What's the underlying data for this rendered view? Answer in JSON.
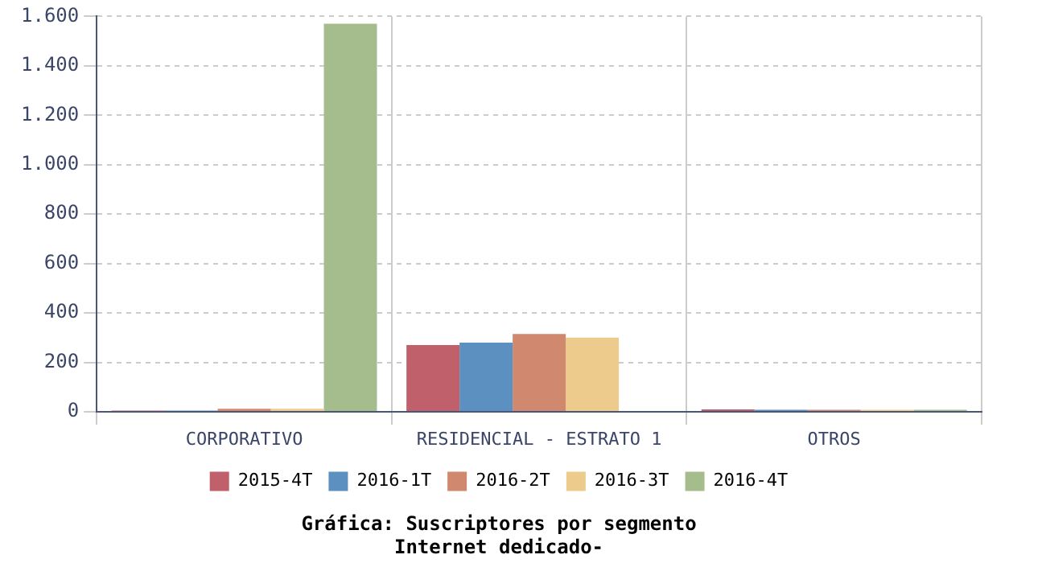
{
  "chart_data": {
    "type": "bar",
    "title": "Gráfica: Suscriptores por segmento",
    "subtitle": "Internet dedicado-",
    "categories": [
      "CORPORATIVO",
      "RESIDENCIAL - ESTRATO 1",
      "OTROS"
    ],
    "series": [
      {
        "name": "2015-4T",
        "color": "#c0606a",
        "values": [
          5,
          270,
          10
        ]
      },
      {
        "name": "2016-1T",
        "color": "#5b90c0",
        "values": [
          5,
          280,
          8
        ]
      },
      {
        "name": "2016-2T",
        "color": "#d0886e",
        "values": [
          12,
          315,
          8
        ]
      },
      {
        "name": "2016-3T",
        "color": "#eccb8c",
        "values": [
          12,
          300,
          8
        ]
      },
      {
        "name": "2016-4T",
        "color": "#a5bd8c",
        "values": [
          1570,
          3,
          8
        ]
      }
    ],
    "ylim": [
      0,
      1600
    ],
    "yticks": [
      0,
      200,
      400,
      600,
      800,
      {
        "value": 1000,
        "label": "1.000"
      },
      {
        "value": 1200,
        "label": "1.200"
      },
      {
        "value": 1400,
        "label": "1.400"
      },
      {
        "value": 1600,
        "label": "1.600"
      }
    ],
    "grid": true,
    "legend": "bottom"
  }
}
